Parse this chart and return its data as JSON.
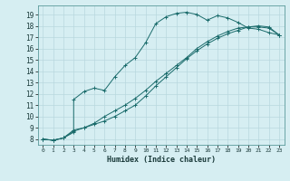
{
  "xlabel": "Humidex (Indice chaleur)",
  "bg_color": "#d6eef2",
  "grid_color": "#b8d8de",
  "line_color": "#1a6b6b",
  "xlim": [
    -0.5,
    23.5
  ],
  "ylim": [
    7.5,
    19.8
  ],
  "xticks": [
    0,
    1,
    2,
    3,
    4,
    5,
    6,
    7,
    8,
    9,
    10,
    11,
    12,
    13,
    14,
    15,
    16,
    17,
    18,
    19,
    20,
    21,
    22,
    23
  ],
  "yticks": [
    8,
    9,
    10,
    11,
    12,
    13,
    14,
    15,
    16,
    17,
    18,
    19
  ],
  "curve1_x": [
    0,
    1,
    2,
    3,
    3,
    4,
    5,
    6,
    7,
    8,
    9,
    10,
    11,
    12,
    13,
    14,
    15,
    16,
    17,
    18,
    19,
    20,
    21,
    22,
    23
  ],
  "curve1_y": [
    8,
    7.9,
    8.1,
    8.6,
    11.5,
    12.2,
    12.5,
    12.3,
    13.5,
    14.5,
    15.2,
    16.5,
    18.2,
    18.8,
    19.1,
    19.2,
    19.0,
    18.5,
    18.9,
    18.7,
    18.3,
    17.8,
    17.7,
    17.4,
    17.2
  ],
  "curve2_x": [
    0,
    1,
    2,
    3,
    4,
    5,
    6,
    7,
    8,
    9,
    10,
    11,
    12,
    13,
    14,
    15,
    16,
    17,
    18,
    19,
    20,
    21,
    22,
    23
  ],
  "curve2_y": [
    8,
    7.9,
    8.1,
    8.8,
    9.0,
    9.3,
    9.6,
    10.0,
    10.5,
    11.0,
    11.8,
    12.7,
    13.5,
    14.3,
    15.1,
    15.8,
    16.4,
    16.9,
    17.3,
    17.6,
    17.9,
    18.0,
    17.9,
    17.2
  ],
  "curve3_x": [
    0,
    1,
    2,
    3,
    4,
    5,
    6,
    7,
    8,
    9,
    10,
    11,
    12,
    13,
    14,
    15,
    16,
    17,
    18,
    19,
    20,
    21,
    22,
    23
  ],
  "curve3_y": [
    8,
    7.9,
    8.1,
    8.7,
    9.0,
    9.4,
    10.0,
    10.5,
    11.0,
    11.6,
    12.3,
    13.1,
    13.8,
    14.5,
    15.2,
    16.0,
    16.6,
    17.1,
    17.5,
    17.8,
    17.9,
    17.9,
    17.8,
    17.2
  ]
}
